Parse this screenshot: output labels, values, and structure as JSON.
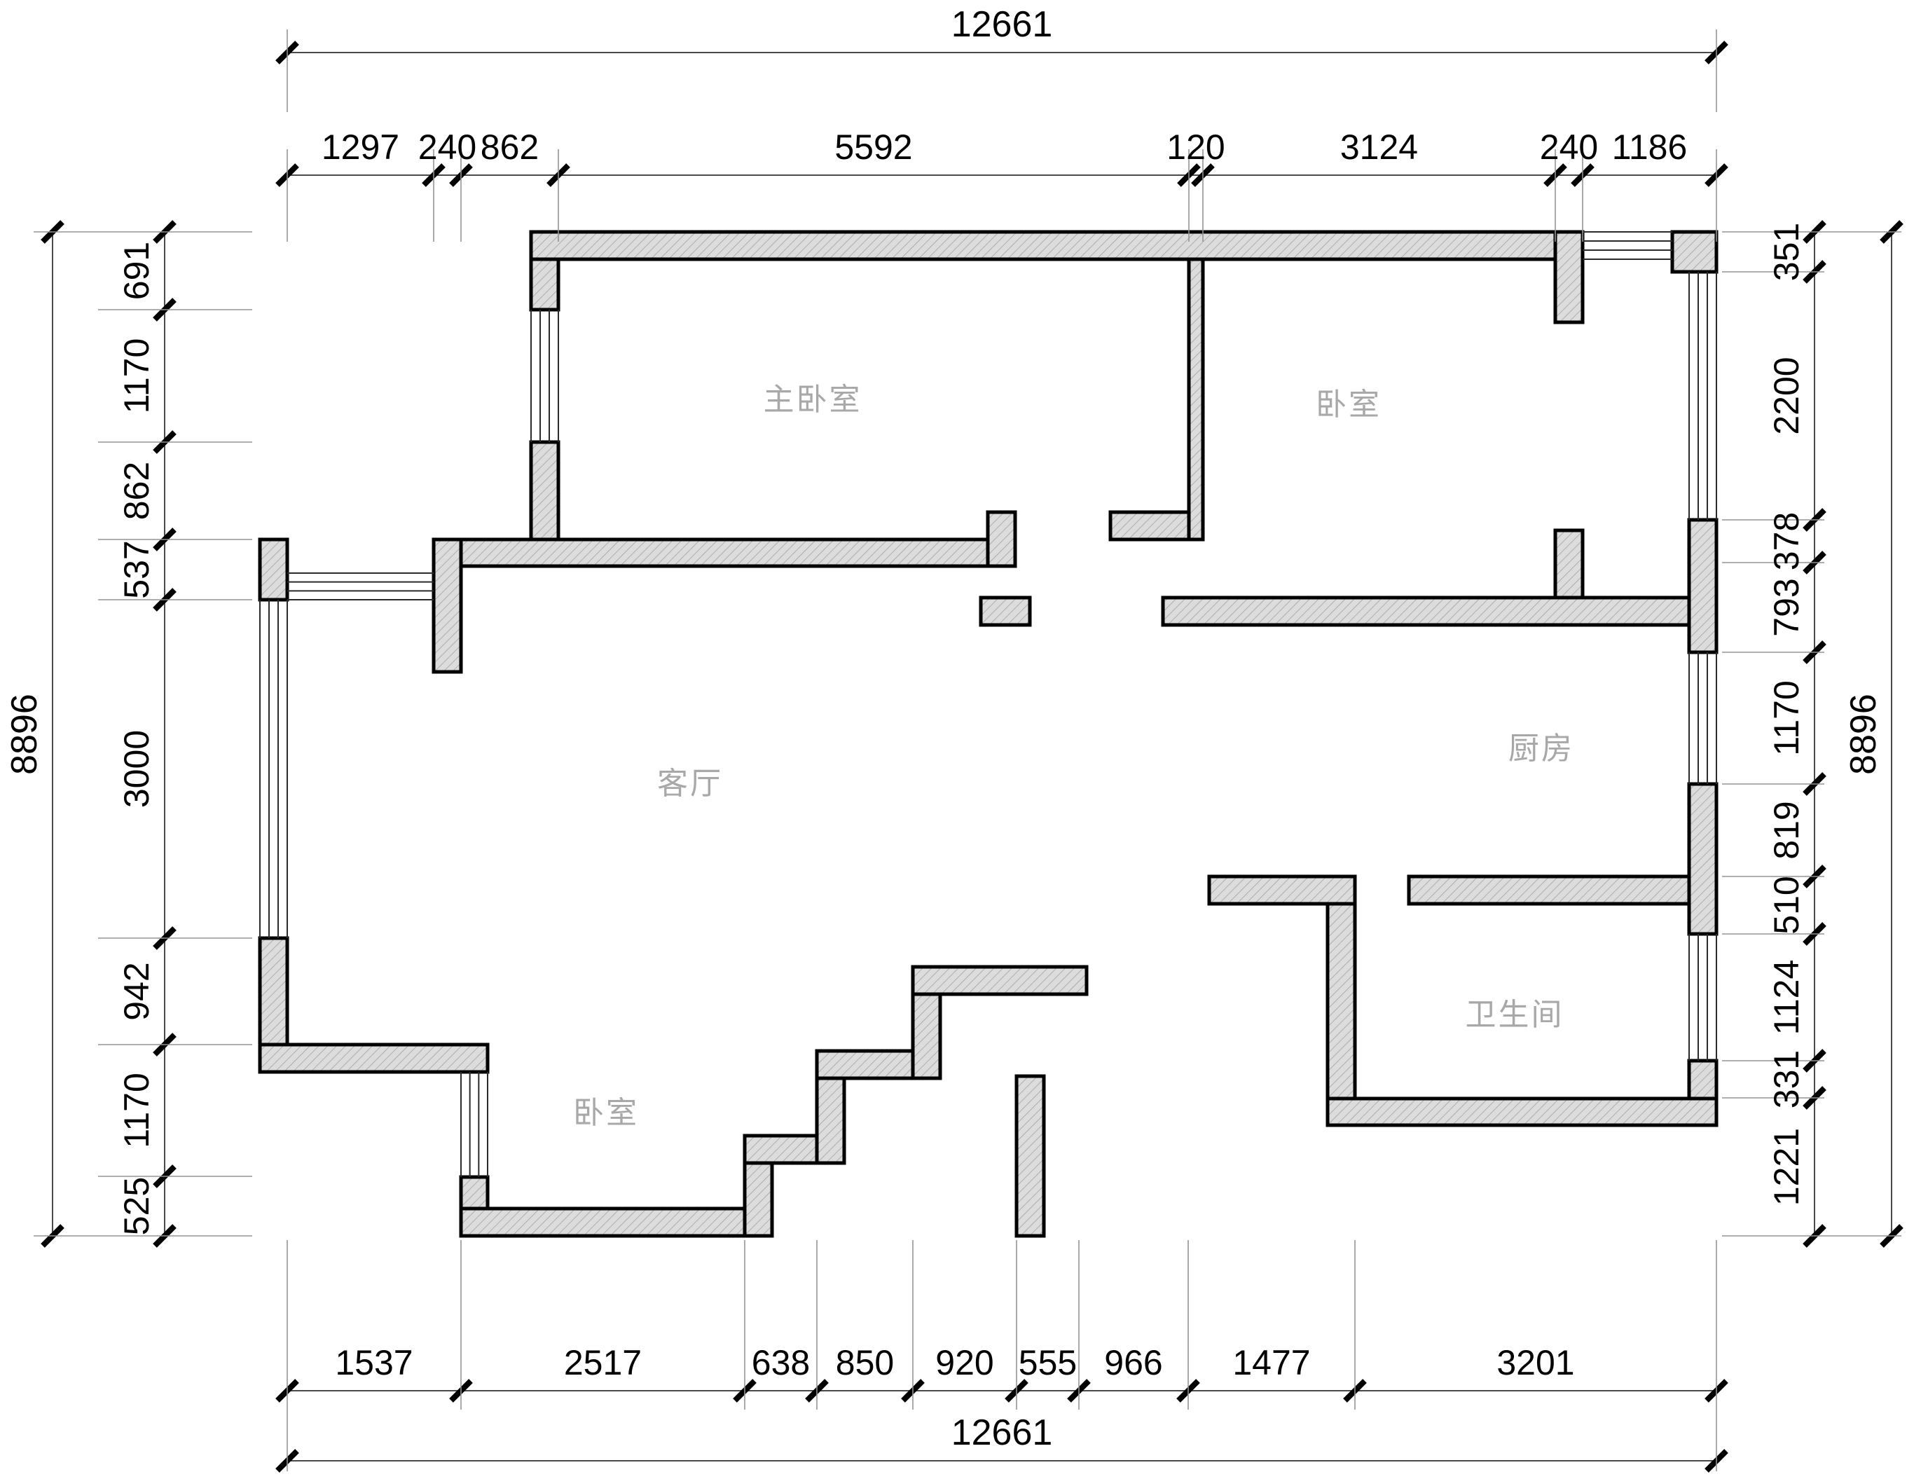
{
  "drawing": {
    "type": "floor-plan",
    "overall": {
      "width_mm": "12661",
      "height_mm": "8896"
    },
    "dims": {
      "top_overall": "12661",
      "top_chain": [
        "1297",
        "240",
        "862",
        "5592",
        "120",
        "3124",
        "240",
        "1186"
      ],
      "bottom_chain": [
        "1537",
        "2517",
        "638",
        "850",
        "920",
        "555",
        "966",
        "1477",
        "3201"
      ],
      "bottom_overall": "12661",
      "left_overall": "8896",
      "left_chain": [
        "691",
        "1170",
        "862",
        "537",
        "3000",
        "942",
        "1170",
        "525"
      ],
      "right_chain": [
        "351",
        "2200",
        "378",
        "793",
        "1170",
        "819",
        "510",
        "1124",
        "331",
        "1221"
      ],
      "right_overall": "8896"
    },
    "rooms": {
      "master_bedroom": "主卧室",
      "bedroom_top_right": "卧室",
      "living_room": "客厅",
      "kitchen": "厨房",
      "bathroom": "卫生间",
      "bedroom_bottom_left": "卧室"
    },
    "colors": {
      "background": "#ffffff",
      "wall_fill": "#dcdcdc",
      "hatch_line": "#9a9a9a",
      "wall_outline": "#000000",
      "dimension_line": "#4a4a4a",
      "extension_line": "#949494",
      "dimension_text": "#000000",
      "room_text": "#a8a8a8"
    }
  }
}
